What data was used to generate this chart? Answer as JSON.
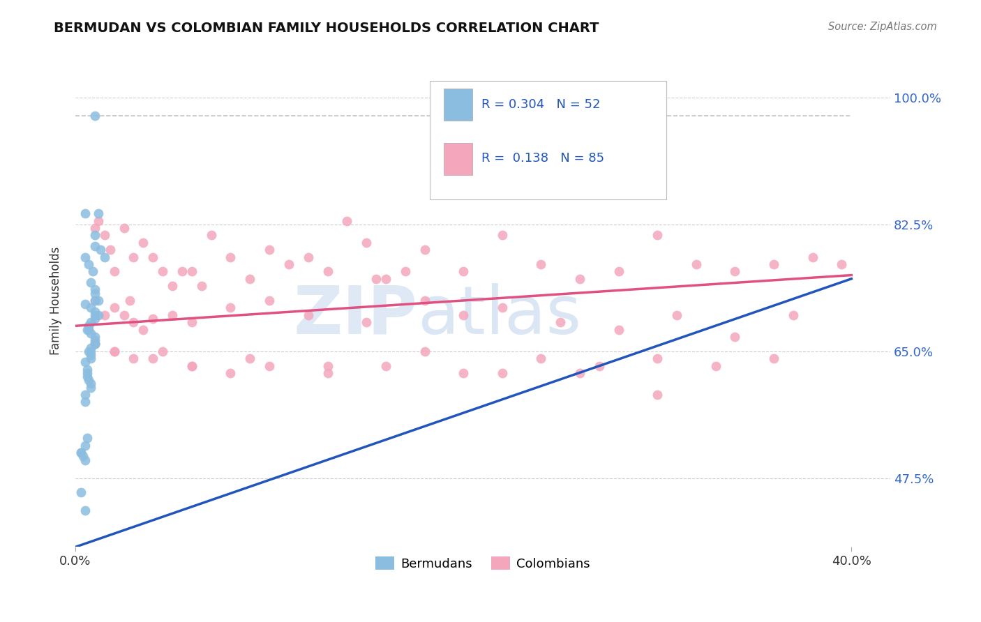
{
  "title": "BERMUDAN VS COLOMBIAN FAMILY HOUSEHOLDS CORRELATION CHART",
  "source": "Source: ZipAtlas.com",
  "ylabel": "Family Households",
  "ytick_labels": [
    "47.5%",
    "65.0%",
    "82.5%",
    "100.0%"
  ],
  "ytick_values": [
    0.475,
    0.65,
    0.825,
    1.0
  ],
  "xtick_labels": [
    "0.0%",
    "40.0%"
  ],
  "xtick_values": [
    0.0,
    0.4
  ],
  "xlim": [
    0.0,
    0.42
  ],
  "ylim": [
    0.38,
    1.06
  ],
  "legend_text_blue": "R = 0.304   N = 52",
  "legend_text_pink": "R =  0.138   N = 85",
  "legend_label1": "Bermudans",
  "legend_label2": "Colombians",
  "bermudan_color": "#8bbde0",
  "colombian_color": "#f4a7bc",
  "regression_blue": "#2255bb",
  "regression_pink": "#e05080",
  "regression_blue_line": [
    [
      0.0,
      0.38
    ],
    [
      0.4,
      0.75
    ]
  ],
  "regression_pink_line": [
    [
      0.0,
      0.685
    ],
    [
      0.4,
      0.755
    ]
  ],
  "dashed_line_y": 0.975,
  "dashed_line_x0": 0.0,
  "dashed_line_x1": 0.4,
  "watermark_text": "ZIP",
  "watermark_text2": "atlas",
  "grid_color": "#cccccc",
  "tick_color_right": "#3366cc",
  "bermudan_x": [
    0.01,
    0.012,
    0.005,
    0.01,
    0.01,
    0.013,
    0.015,
    0.005,
    0.007,
    0.009,
    0.008,
    0.01,
    0.01,
    0.01,
    0.012,
    0.005,
    0.008,
    0.01,
    0.01,
    0.012,
    0.01,
    0.008,
    0.007,
    0.006,
    0.007,
    0.008,
    0.01,
    0.01,
    0.01,
    0.01,
    0.008,
    0.008,
    0.007,
    0.008,
    0.008,
    0.005,
    0.006,
    0.006,
    0.006,
    0.007,
    0.008,
    0.008,
    0.005,
    0.005,
    0.006,
    0.005,
    0.003,
    0.003,
    0.004,
    0.005,
    0.003,
    0.005
  ],
  "bermudan_y": [
    0.975,
    0.84,
    0.84,
    0.81,
    0.795,
    0.79,
    0.78,
    0.78,
    0.77,
    0.76,
    0.745,
    0.735,
    0.73,
    0.72,
    0.72,
    0.715,
    0.71,
    0.705,
    0.7,
    0.7,
    0.695,
    0.69,
    0.685,
    0.68,
    0.68,
    0.675,
    0.67,
    0.665,
    0.66,
    0.66,
    0.655,
    0.65,
    0.65,
    0.645,
    0.64,
    0.635,
    0.625,
    0.62,
    0.615,
    0.61,
    0.605,
    0.6,
    0.59,
    0.58,
    0.53,
    0.52,
    0.51,
    0.51,
    0.505,
    0.5,
    0.455,
    0.43
  ],
  "colombian_x": [
    0.01,
    0.012,
    0.015,
    0.018,
    0.02,
    0.025,
    0.028,
    0.03,
    0.035,
    0.04,
    0.045,
    0.05,
    0.055,
    0.06,
    0.065,
    0.07,
    0.08,
    0.09,
    0.1,
    0.11,
    0.12,
    0.13,
    0.14,
    0.15,
    0.155,
    0.16,
    0.17,
    0.18,
    0.2,
    0.22,
    0.24,
    0.26,
    0.28,
    0.3,
    0.32,
    0.34,
    0.36,
    0.38,
    0.395,
    0.01,
    0.015,
    0.02,
    0.025,
    0.03,
    0.035,
    0.04,
    0.05,
    0.06,
    0.08,
    0.1,
    0.12,
    0.15,
    0.18,
    0.2,
    0.22,
    0.25,
    0.28,
    0.31,
    0.34,
    0.37,
    0.01,
    0.02,
    0.03,
    0.045,
    0.06,
    0.08,
    0.1,
    0.13,
    0.16,
    0.2,
    0.24,
    0.27,
    0.3,
    0.33,
    0.36,
    0.01,
    0.02,
    0.04,
    0.06,
    0.09,
    0.13,
    0.18,
    0.22,
    0.26,
    0.3
  ],
  "colombian_y": [
    0.82,
    0.83,
    0.81,
    0.79,
    0.76,
    0.82,
    0.72,
    0.78,
    0.8,
    0.78,
    0.76,
    0.74,
    0.76,
    0.76,
    0.74,
    0.81,
    0.78,
    0.75,
    0.79,
    0.77,
    0.78,
    0.76,
    0.83,
    0.8,
    0.75,
    0.75,
    0.76,
    0.79,
    0.76,
    0.81,
    0.77,
    0.75,
    0.76,
    0.81,
    0.77,
    0.76,
    0.77,
    0.78,
    0.77,
    0.72,
    0.7,
    0.71,
    0.7,
    0.69,
    0.68,
    0.695,
    0.7,
    0.69,
    0.71,
    0.72,
    0.7,
    0.69,
    0.72,
    0.7,
    0.71,
    0.69,
    0.68,
    0.7,
    0.67,
    0.7,
    0.66,
    0.65,
    0.64,
    0.65,
    0.63,
    0.62,
    0.63,
    0.62,
    0.63,
    0.62,
    0.64,
    0.63,
    0.64,
    0.63,
    0.64,
    0.66,
    0.65,
    0.64,
    0.63,
    0.64,
    0.63,
    0.65,
    0.62,
    0.62,
    0.59
  ]
}
